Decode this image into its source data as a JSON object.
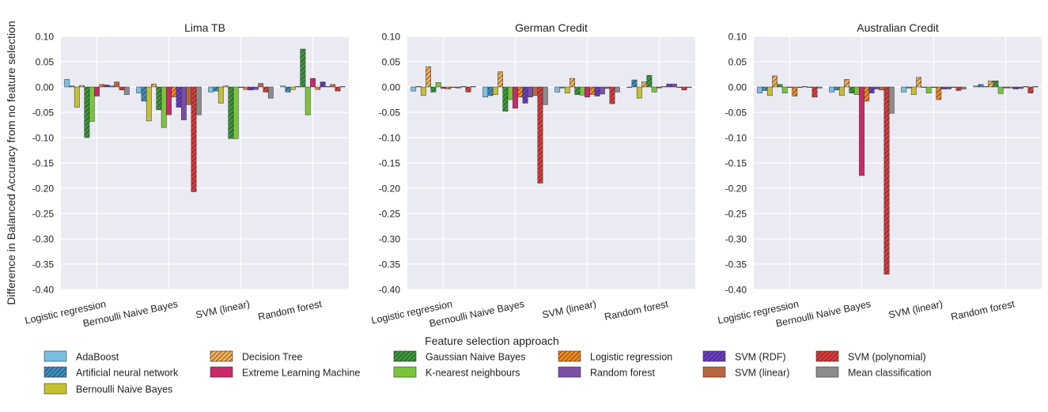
{
  "figure": {
    "ylabel": "Difference in Balanced Accuracy from no feature selection",
    "xlabel": "Feature selection approach",
    "legend_placement": "bottom",
    "background": "#eaeaf2",
    "grid": true
  },
  "chart_data": [
    {
      "type": "bar",
      "title": "Lima TB",
      "categories": [
        "Logistic regression",
        "Bernoulli Naive Bayes",
        "SVM (linear)",
        "Random forest"
      ],
      "ylim": [
        -0.4,
        0.1
      ],
      "yticks": [
        "0.10",
        "0.05",
        "0.00",
        "-0.05",
        "-0.10",
        "-0.15",
        "-0.20",
        "-0.25",
        "-0.30",
        "-0.35",
        "-0.40"
      ],
      "values": [
        [
          0.015,
          0.002,
          -0.04,
          0.003,
          -0.1,
          -0.068,
          -0.018,
          0.005,
          0.004,
          0.002,
          0.01,
          -0.006,
          -0.015
        ],
        [
          -0.012,
          -0.028,
          -0.067,
          0.006,
          -0.045,
          -0.08,
          -0.055,
          -0.02,
          -0.04,
          -0.065,
          -0.035,
          -0.207,
          -0.055
        ],
        [
          -0.01,
          -0.008,
          -0.032,
          0.002,
          -0.102,
          -0.102,
          0.0,
          -0.005,
          -0.006,
          -0.005,
          0.007,
          -0.01,
          -0.022
        ],
        [
          0.002,
          -0.01,
          -0.005,
          0.001,
          0.075,
          -0.055,
          0.017,
          -0.005,
          0.01,
          0.001,
          0.005,
          -0.008,
          0.001
        ]
      ]
    },
    {
      "type": "bar",
      "title": "German Credit",
      "categories": [
        "Logistic regression",
        "Bernoulli Naive Bayes",
        "SVM (linear)",
        "Random forest"
      ],
      "ylim": [
        -0.4,
        0.1
      ],
      "yticks": [
        "0.10",
        "0.05",
        "0.00",
        "-0.05",
        "-0.10",
        "-0.15",
        "-0.20",
        "-0.25",
        "-0.30",
        "-0.35",
        "-0.40"
      ],
      "values": [
        [
          -0.008,
          0.001,
          -0.017,
          0.04,
          -0.01,
          0.009,
          -0.003,
          -0.004,
          0.0,
          -0.002,
          0.001,
          -0.01,
          0.001
        ],
        [
          -0.02,
          -0.017,
          -0.015,
          0.03,
          -0.048,
          -0.025,
          -0.042,
          -0.02,
          -0.032,
          -0.02,
          -0.017,
          -0.19,
          -0.035
        ],
        [
          -0.01,
          -0.002,
          -0.012,
          0.017,
          -0.015,
          -0.016,
          -0.02,
          -0.015,
          -0.018,
          -0.014,
          -0.003,
          -0.033,
          -0.01
        ],
        [
          0.0,
          0.014,
          -0.022,
          0.01,
          0.023,
          -0.01,
          -0.002,
          0.001,
          0.006,
          0.006,
          0.0,
          -0.006,
          0.0
        ]
      ]
    },
    {
      "type": "bar",
      "title": "Australian Credit",
      "categories": [
        "Logistic regression",
        "Bernoulli Naive Bayes",
        "SVM (linear)",
        "Random forest"
      ],
      "ylim": [
        -0.4,
        0.1
      ],
      "yticks": [
        "0.10",
        "0.05",
        "0.00",
        "-0.05",
        "-0.10",
        "-0.15",
        "-0.20",
        "-0.25",
        "-0.30",
        "-0.35",
        "-0.40"
      ],
      "values": [
        [
          -0.012,
          -0.007,
          -0.017,
          0.022,
          0.005,
          -0.012,
          0.0,
          -0.018,
          0.0,
          0.001,
          0.0,
          -0.02,
          -0.002
        ],
        [
          -0.01,
          -0.006,
          -0.017,
          0.015,
          -0.012,
          -0.015,
          -0.175,
          -0.028,
          -0.012,
          -0.004,
          -0.006,
          -0.37,
          -0.052
        ],
        [
          -0.01,
          -0.002,
          -0.015,
          0.019,
          0.0,
          -0.012,
          -0.001,
          -0.025,
          -0.004,
          -0.004,
          0.0,
          -0.007,
          -0.004
        ],
        [
          0.002,
          0.005,
          0.001,
          0.012,
          0.012,
          -0.013,
          -0.002,
          -0.002,
          -0.004,
          -0.003,
          0.001,
          -0.012,
          0.001
        ]
      ]
    }
  ],
  "series": [
    {
      "name": "AdaBoost",
      "color": "#7bbfe0",
      "hatch": false
    },
    {
      "name": "Artificial neural network",
      "color": "#3d8fc3",
      "hatch": true
    },
    {
      "name": "Bernoulli Naive Bayes",
      "color": "#c4c032",
      "hatch": false
    },
    {
      "name": "Decision Tree",
      "color": "#f5b258",
      "hatch": true
    },
    {
      "name": "Gaussian Naive Bayes",
      "color": "#3a9a3a",
      "hatch": true
    },
    {
      "name": "K-nearest neighbours",
      "color": "#7bc43a",
      "hatch": false
    },
    {
      "name": "Extreme Learning Machine",
      "color": "#c82a6a",
      "hatch": false
    },
    {
      "name": "Logistic regression",
      "color": "#f58a1e",
      "hatch": true
    },
    {
      "name": "SVM (RDF)",
      "color": "#6a3dc8",
      "hatch": true
    },
    {
      "name": "Random forest",
      "color": "#7a4fa5",
      "hatch": false
    },
    {
      "name": "SVM (linear)",
      "color": "#b8663e",
      "hatch": false
    },
    {
      "name": "SVM (polynomial)",
      "color": "#e03a3a",
      "hatch": true
    },
    {
      "name": "Mean classification",
      "color": "#8c8c8c",
      "hatch": false
    }
  ],
  "legend_columns": [
    [
      0,
      1,
      2
    ],
    [
      3,
      6
    ],
    [
      4,
      5
    ],
    [
      7,
      9
    ],
    [
      8,
      10
    ],
    [
      11,
      12
    ]
  ]
}
